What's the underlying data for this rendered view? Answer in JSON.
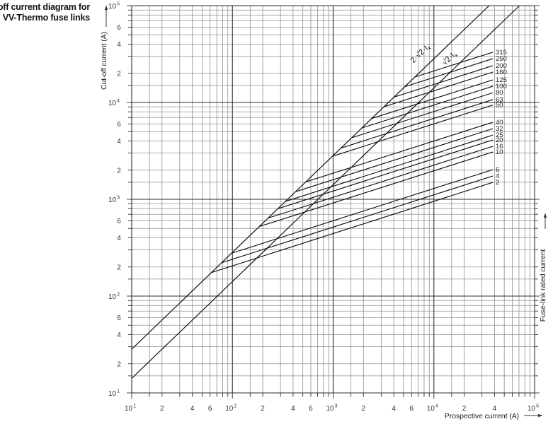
{
  "title": {
    "line1": "Cut-off current diagram for",
    "line2": "VV-Thermo fuse links"
  },
  "chart_data": {
    "type": "line",
    "scale": "log-log",
    "grid": "on",
    "x_axis": {
      "label": "Prospective current (A)",
      "range": [
        10,
        100000
      ],
      "decade_exponents": [
        1,
        2,
        3,
        4,
        5
      ],
      "labeled_minors": [
        [
          2,
          4,
          6
        ],
        [
          2,
          4,
          6
        ],
        [
          2,
          4,
          6
        ],
        [
          2,
          4
        ]
      ],
      "minor_gridlines": [
        1.5,
        2,
        3,
        4,
        5,
        6,
        7,
        8,
        9
      ]
    },
    "y_axis": {
      "label": "Cut-off current (A)",
      "range": [
        10,
        100000
      ],
      "decade_exponents": [
        1,
        2,
        3,
        4,
        5
      ],
      "labeled_minors": [
        [
          2,
          4,
          6
        ],
        [
          2,
          4,
          6
        ],
        [
          2,
          4,
          6
        ],
        [
          2,
          4,
          6
        ]
      ],
      "minor_gridlines": [
        1.5,
        2,
        3,
        4,
        5,
        6,
        7,
        8,
        9
      ]
    },
    "right_axis_label": "Fuse-link rated current",
    "envelope_lines": [
      {
        "id": "2-sqrt2-ik",
        "label": "2·√2·I",
        "label_sub": "k",
        "points": [
          [
            10,
            28.3
          ],
          [
            35360,
            100000
          ]
        ],
        "label_anchor": [
          7600,
          30800
        ]
      },
      {
        "id": "sqrt2-ik",
        "label": "√2·I",
        "label_sub": "k",
        "points": [
          [
            10,
            14.14
          ],
          [
            70710,
            100000
          ]
        ],
        "label_anchor": [
          14800,
          27500
        ]
      }
    ],
    "envelope_label_rotation_deg": -44,
    "fuse_links": [
      {
        "rating": "315",
        "start": [
          6470,
          18310
        ],
        "end": [
          38500,
          33000
        ]
      },
      {
        "rating": "250",
        "start": [
          5140,
          14550
        ],
        "end": [
          38500,
          28300
        ]
      },
      {
        "rating": "200",
        "start": [
          4010,
          11350
        ],
        "end": [
          38500,
          24000
        ]
      },
      {
        "rating": "160",
        "start": [
          3190,
          9030
        ],
        "end": [
          38500,
          20600
        ]
      },
      {
        "rating": "125",
        "start": [
          2415,
          6830
        ],
        "end": [
          38500,
          17100
        ]
      },
      {
        "rating": "100",
        "start": [
          1925,
          5450
        ],
        "end": [
          38500,
          14700
        ]
      },
      {
        "rating": "80",
        "start": [
          1527,
          4320
        ],
        "end": [
          38500,
          12600
        ]
      },
      {
        "rating": "63",
        "start": [
          1194,
          3380
        ],
        "end": [
          38500,
          10700
        ]
      },
      {
        "rating": "50",
        "start": [
          983,
          2780
        ],
        "end": [
          38500,
          9400
        ]
      },
      {
        "rating": "40",
        "start": [
          533,
          1510
        ],
        "end": [
          38500,
          6250
        ]
      },
      {
        "rating": "32",
        "start": [
          425,
          1200
        ],
        "end": [
          38500,
          5370
        ]
      },
      {
        "rating": "25",
        "start": [
          336,
          950
        ],
        "end": [
          38500,
          4600
        ]
      },
      {
        "rating": "20",
        "start": [
          283,
          800
        ],
        "end": [
          38500,
          4100
        ]
      },
      {
        "rating": "16",
        "start": [
          226,
          640
        ],
        "end": [
          38500,
          3525
        ]
      },
      {
        "rating": "10",
        "start": [
          185,
          523
        ],
        "end": [
          38500,
          3080
        ]
      },
      {
        "rating": "6",
        "start": [
          98,
          277
        ],
        "end": [
          38500,
          2025
        ]
      },
      {
        "rating": "4",
        "start": [
          78,
          221
        ],
        "end": [
          38500,
          1740
        ]
      },
      {
        "rating": "2",
        "start": [
          62,
          175
        ],
        "end": [
          38500,
          1495
        ]
      }
    ],
    "colors": {
      "curve": "#101010",
      "grid_major": "#2e2e2e",
      "grid_minor": "#8f8f8f",
      "tick": "#2e2e2e",
      "text": "#333333"
    }
  }
}
